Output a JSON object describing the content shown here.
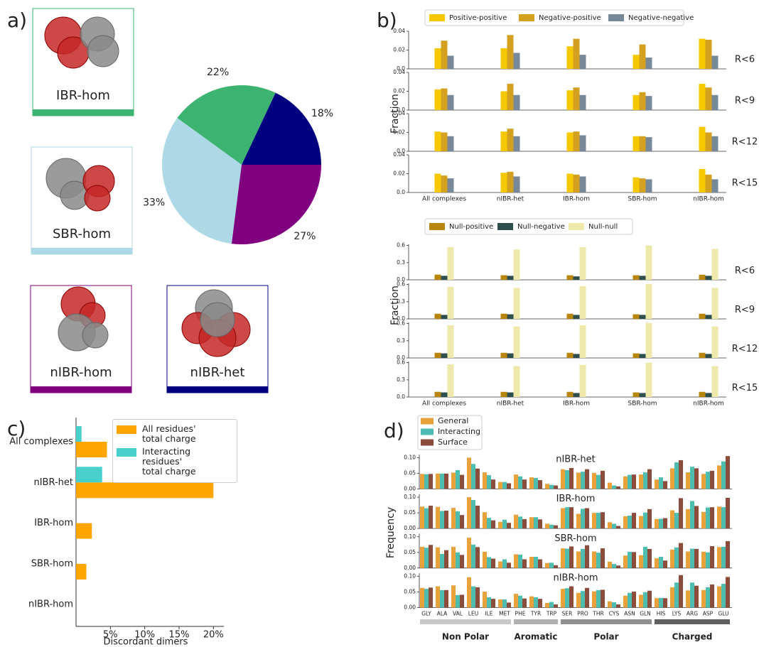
{
  "chart_data": [
    {
      "type": "pie",
      "panel_label": "a)",
      "categories": [
        "nIBR-het",
        "IBR-hom",
        "SBR-hom",
        "nIBR-hom"
      ],
      "values": [
        18,
        22,
        33,
        27
      ],
      "value_labels": [
        "18%",
        "22%",
        "33%",
        "27%"
      ],
      "colors": [
        "#000080",
        "#3cb371",
        "#add8e6",
        "#800080"
      ]
    },
    {
      "type": "bar",
      "panel_label": "b)",
      "ylabel": "Fraction",
      "categories": [
        "All complexes",
        "nIBR-het",
        "IBR-hom",
        "SBR-hom",
        "nIBR-hom"
      ],
      "facets": [
        "R<6",
        "R<9",
        "R<12",
        "R<15"
      ],
      "ylim": [
        0,
        0.04
      ],
      "yticks": [
        {
          "value": 0,
          "label": "0.0"
        },
        0.02,
        0.04
      ],
      "series": [
        {
          "name": "Positive-positive",
          "color": "#f5c800",
          "values": [
            [
              0.022,
              0.022,
              0.024,
              0.015,
              0.032
            ],
            [
              0.022,
              0.02,
              0.021,
              0.016,
              0.028
            ],
            [
              0.021,
              0.021,
              0.02,
              0.016,
              0.026
            ],
            [
              0.02,
              0.021,
              0.02,
              0.016,
              0.025
            ]
          ]
        },
        {
          "name": "Negative-positive",
          "color": "#d4a020",
          "values": [
            [
              0.03,
              0.036,
              0.032,
              0.026,
              0.031
            ],
            [
              0.023,
              0.028,
              0.024,
              0.019,
              0.024
            ],
            [
              0.02,
              0.024,
              0.021,
              0.016,
              0.02
            ],
            [
              0.018,
              0.022,
              0.019,
              0.015,
              0.019
            ]
          ]
        },
        {
          "name": "Negative-negative",
          "color": "#778899",
          "values": [
            [
              0.014,
              0.017,
              0.015,
              0.012,
              0.014
            ],
            [
              0.016,
              0.016,
              0.016,
              0.015,
              0.016
            ],
            [
              0.016,
              0.016,
              0.017,
              0.015,
              0.016
            ],
            [
              0.015,
              0.017,
              0.017,
              0.014,
              0.014
            ]
          ]
        }
      ]
    },
    {
      "type": "bar",
      "ylabel": "Fraction",
      "categories": [
        "All complexes",
        "nIBR-het",
        "IBR-hom",
        "SBR-hom",
        "nIBR-hom"
      ],
      "facets": [
        "R<6",
        "R<9",
        "R<12",
        "R<15"
      ],
      "ylim": [
        0,
        0.62
      ],
      "yticks": [
        {
          "value": 0,
          "label": "0.0"
        },
        0.3,
        0.6
      ],
      "series": [
        {
          "name": "Null-positive",
          "color": "#b8860b",
          "values": [
            [
              0.09,
              0.08,
              0.08,
              0.08,
              0.09
            ],
            [
              0.09,
              0.09,
              0.09,
              0.08,
              0.09
            ],
            [
              0.09,
              0.09,
              0.09,
              0.08,
              0.09
            ],
            [
              0.09,
              0.09,
              0.09,
              0.08,
              0.09
            ]
          ]
        },
        {
          "name": "Null-negative",
          "color": "#2f4f4f",
          "values": [
            [
              0.07,
              0.07,
              0.06,
              0.07,
              0.07
            ],
            [
              0.07,
              0.08,
              0.07,
              0.07,
              0.07
            ],
            [
              0.08,
              0.08,
              0.07,
              0.07,
              0.07
            ],
            [
              0.08,
              0.08,
              0.07,
              0.07,
              0.07
            ]
          ]
        },
        {
          "name": "Null-null",
          "color": "#eee8aa",
          "values": [
            [
              0.57,
              0.53,
              0.57,
              0.6,
              0.54
            ],
            [
              0.56,
              0.54,
              0.57,
              0.61,
              0.54
            ],
            [
              0.57,
              0.55,
              0.57,
              0.61,
              0.55
            ],
            [
              0.57,
              0.54,
              0.56,
              0.6,
              0.54
            ]
          ]
        }
      ]
    },
    {
      "type": "hbar",
      "panel_label": "c)",
      "xlabel": "Discordant dimers",
      "categories": [
        "All complexes",
        "nIBR-het",
        "IBR-hom",
        "SBR-hom",
        "nIBR-hom"
      ],
      "xlim": [
        0,
        21
      ],
      "xticks": [
        {
          "value": 5,
          "label": "5%"
        },
        {
          "value": 10,
          "label": "10%"
        },
        {
          "value": 15,
          "label": "15%"
        },
        {
          "value": 20,
          "label": "20%"
        }
      ],
      "series": [
        {
          "name": "All residues'\ntotal charge",
          "color": "#ffa500",
          "values": [
            4.5,
            20,
            2.3,
            1.5,
            0
          ]
        },
        {
          "name": "Interacting residues'\n total charge",
          "color": "#48d1cc",
          "values": [
            0.8,
            3.8,
            0,
            0,
            0
          ]
        }
      ]
    },
    {
      "type": "bar",
      "panel_label": "d)",
      "ylabel": "Frequency",
      "categories": [
        "GLY",
        "ALA",
        "VAL",
        "LEU",
        "ILE",
        "MET",
        "PHE",
        "TYR",
        "TRP",
        "SER",
        "PRO",
        "THR",
        "CYS",
        "ASN",
        "GLN",
        "HIS",
        "LYS",
        "ARG",
        "ASP",
        "GLU"
      ],
      "facets": [
        "nIBR-het",
        "IBR-hom",
        "SBR-hom",
        "nIBR-hom"
      ],
      "group_labels": [
        "Non Polar",
        "Aromatic",
        "Polar",
        "Charged"
      ],
      "ylim": [
        0,
        0.11
      ],
      "yticks": [
        {
          "value": 0,
          "label": "0.00"
        },
        0.05,
        {
          "value": 0.1,
          "label": "0.10"
        }
      ],
      "series": [
        {
          "name": "General",
          "color": "#e9a13b",
          "values": [
            [
              0.048,
              0.049,
              0.052,
              0.1,
              0.053,
              0.022,
              0.046,
              0.037,
              0.016,
              0.063,
              0.052,
              0.051,
              0.02,
              0.04,
              0.046,
              0.03,
              0.066,
              0.053,
              0.048,
              0.075
            ],
            [
              0.07,
              0.069,
              0.066,
              0.1,
              0.052,
              0.021,
              0.044,
              0.036,
              0.015,
              0.065,
              0.047,
              0.05,
              0.02,
              0.039,
              0.04,
              0.03,
              0.058,
              0.062,
              0.053,
              0.07
            ],
            [
              0.068,
              0.066,
              0.068,
              0.097,
              0.052,
              0.021,
              0.044,
              0.036,
              0.016,
              0.063,
              0.053,
              0.053,
              0.02,
              0.04,
              0.041,
              0.031,
              0.059,
              0.053,
              0.052,
              0.067
            ],
            [
              0.063,
              0.068,
              0.071,
              0.097,
              0.051,
              0.026,
              0.044,
              0.036,
              0.015,
              0.06,
              0.047,
              0.052,
              0.02,
              0.038,
              0.041,
              0.03,
              0.065,
              0.055,
              0.056,
              0.068
            ]
          ]
        },
        {
          "name": "Interacting",
          "color": "#4dbdb0",
          "values": [
            [
              0.047,
              0.049,
              0.06,
              0.08,
              0.044,
              0.022,
              0.04,
              0.035,
              0.013,
              0.06,
              0.055,
              0.045,
              0.011,
              0.045,
              0.053,
              0.037,
              0.085,
              0.071,
              0.055,
              0.088
            ],
            [
              0.065,
              0.056,
              0.055,
              0.091,
              0.034,
              0.028,
              0.038,
              0.036,
              0.012,
              0.068,
              0.063,
              0.05,
              0.015,
              0.041,
              0.051,
              0.031,
              0.05,
              0.088,
              0.067,
              0.068
            ],
            [
              0.065,
              0.045,
              0.05,
              0.075,
              0.035,
              0.028,
              0.043,
              0.036,
              0.017,
              0.062,
              0.061,
              0.049,
              0.013,
              0.052,
              0.068,
              0.036,
              0.066,
              0.062,
              0.05,
              0.068
            ],
            [
              0.06,
              0.056,
              0.04,
              0.068,
              0.033,
              0.026,
              0.038,
              0.033,
              0.018,
              0.062,
              0.053,
              0.056,
              0.017,
              0.047,
              0.049,
              0.031,
              0.08,
              0.08,
              0.065,
              0.076
            ]
          ]
        },
        {
          "name": "Surface",
          "color": "#8b4c3b",
          "values": [
            [
              0.048,
              0.049,
              0.045,
              0.065,
              0.03,
              0.018,
              0.03,
              0.028,
              0.011,
              0.067,
              0.063,
              0.058,
              0.008,
              0.046,
              0.063,
              0.025,
              0.092,
              0.066,
              0.058,
              0.105
            ],
            [
              0.073,
              0.057,
              0.043,
              0.073,
              0.026,
              0.018,
              0.03,
              0.029,
              0.01,
              0.068,
              0.065,
              0.052,
              0.008,
              0.05,
              0.062,
              0.033,
              0.097,
              0.072,
              0.068,
              0.098
            ],
            [
              0.074,
              0.057,
              0.042,
              0.067,
              0.03,
              0.017,
              0.028,
              0.028,
              0.009,
              0.069,
              0.073,
              0.063,
              0.008,
              0.051,
              0.061,
              0.024,
              0.08,
              0.061,
              0.07,
              0.086
            ],
            [
              0.064,
              0.056,
              0.041,
              0.065,
              0.028,
              0.016,
              0.029,
              0.028,
              0.01,
              0.068,
              0.063,
              0.057,
              0.01,
              0.051,
              0.054,
              0.03,
              0.104,
              0.07,
              0.074,
              0.098
            ]
          ]
        }
      ]
    }
  ]
}
